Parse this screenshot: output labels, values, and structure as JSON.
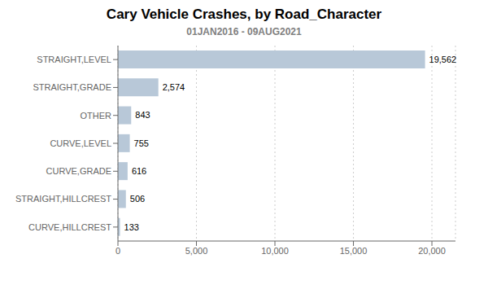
{
  "chart_data": {
    "type": "bar",
    "title": "Cary Vehicle Crashes, by Road_Character",
    "subtitle": "01JAN2016 - 09AUG2021",
    "orientation": "horizontal",
    "categories": [
      "CURVE,HILLCREST",
      "STRAIGHT,HILLCREST",
      "CURVE,GRADE",
      "CURVE,LEVEL",
      "OTHER",
      "STRAIGHT,GRADE",
      "STRAIGHT,LEVEL"
    ],
    "values": [
      133,
      506,
      616,
      755,
      843,
      2574,
      19562
    ],
    "value_labels": [
      "133",
      "506",
      "616",
      "755",
      "843",
      "2,574",
      "19,562"
    ],
    "data_labels": true,
    "color": "#b8c8d8",
    "xlim": [
      0,
      21500
    ],
    "xticks": [
      0,
      {
        "value": 5000,
        "label": "5,000"
      },
      {
        "value": 10000,
        "label": "10,000"
      },
      {
        "value": 15000,
        "label": "15,000"
      },
      {
        "value": 20000,
        "label": "20,000"
      }
    ],
    "grid": true
  }
}
